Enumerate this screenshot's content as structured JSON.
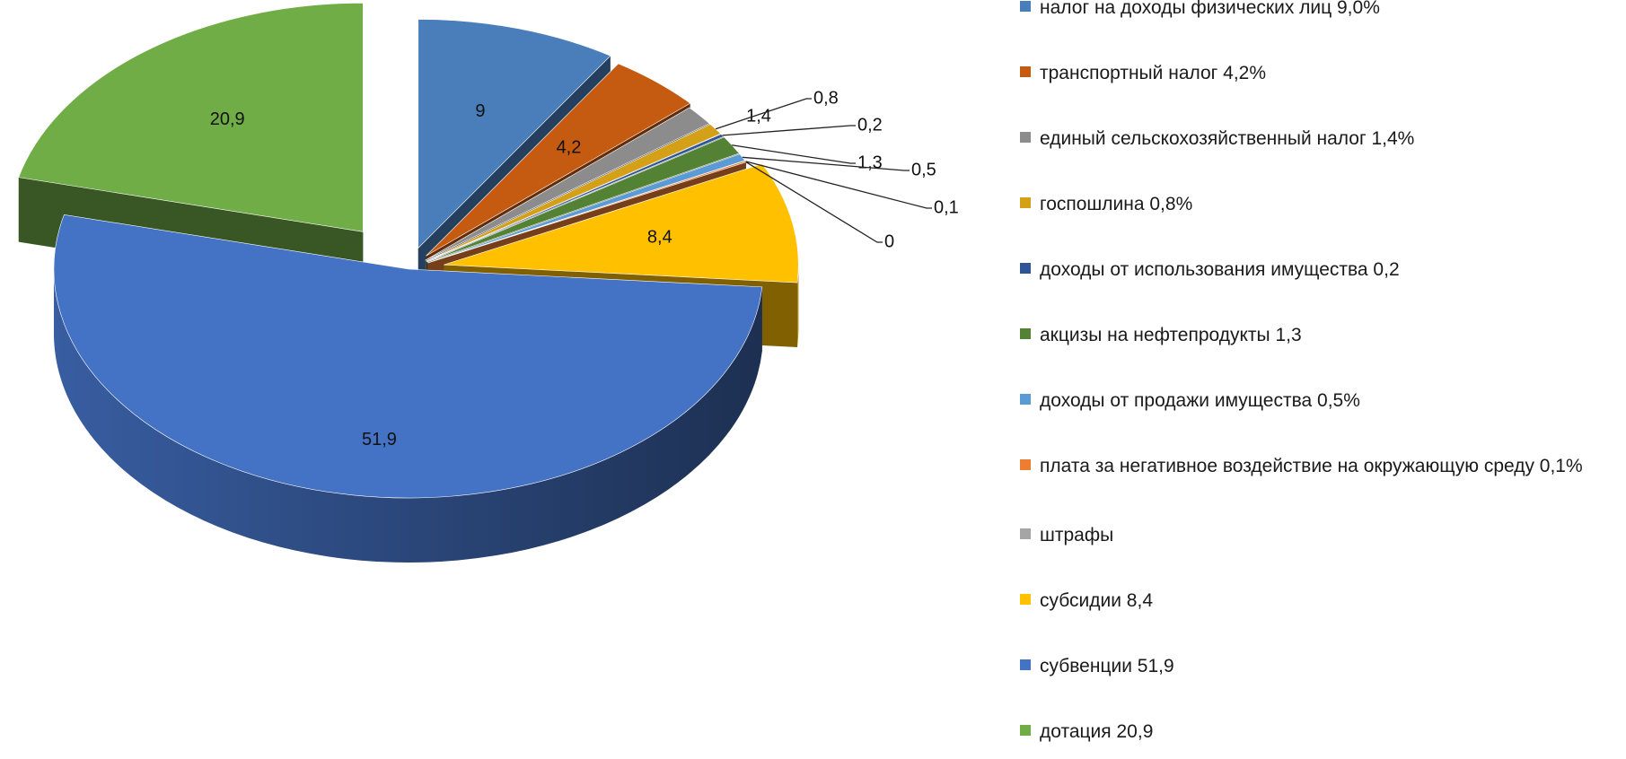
{
  "chart_data": {
    "type": "pie",
    "title": "",
    "three_d": true,
    "exploded": true,
    "legend_position": "right",
    "slices": [
      {
        "label": "9",
        "value": 9.0,
        "legend": "налог на доходы физических лиц 9,0%",
        "color": "#4A7EBB"
      },
      {
        "label": "4,2",
        "value": 4.2,
        "legend": "транспортный налог 4,2%",
        "color": "#C55A11"
      },
      {
        "label": "1,4",
        "value": 1.4,
        "legend": "единый  сельскохозяйственный  налог 1,4%",
        "color": "#8C8C8C"
      },
      {
        "label": "0,8",
        "value": 0.8,
        "legend": "госпошлина 0,8%",
        "color": "#D4A017"
      },
      {
        "label": "0,2",
        "value": 0.2,
        "legend": "доходы  от использования имущества 0,2",
        "color": "#2F5597"
      },
      {
        "label": "1,3",
        "value": 1.3,
        "legend": "акцизы на нефтепродукты  1,3",
        "color": "#548235"
      },
      {
        "label": "0,5",
        "value": 0.5,
        "legend": "доходы  от продажи имущества 0,5%",
        "color": "#5B9BD5"
      },
      {
        "label": "0,1",
        "value": 0.1,
        "legend": "плата за негативное воздействие  на окружающую среду 0,1%",
        "color": "#ED7D31"
      },
      {
        "label": "0",
        "value": 0.0,
        "legend": "штрафы",
        "color": "#A5A5A5"
      },
      {
        "label": "8,4",
        "value": 8.4,
        "legend": "субсидии 8,4",
        "color": "#FFC000"
      },
      {
        "label": "51,9",
        "value": 51.9,
        "legend": "субвенции  51,9",
        "color": "#4472C4"
      },
      {
        "label": "20,9",
        "value": 20.9,
        "legend": "дотация 20,9",
        "color": "#70AD47"
      }
    ]
  }
}
